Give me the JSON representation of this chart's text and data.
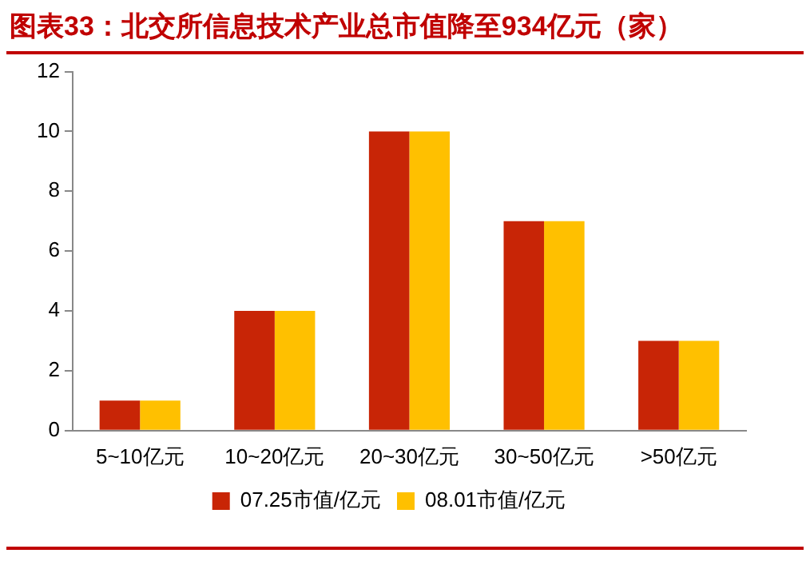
{
  "chart_data": {
    "type": "bar",
    "title": "图表33：北交所信息技术产业总市值降至934亿元（家）",
    "categories": [
      "5~10亿元",
      "10~20亿元",
      "20~30亿元",
      "30~50亿元",
      ">50亿元"
    ],
    "series": [
      {
        "name": "07.25市值/亿元",
        "color": "#c82506",
        "values": [
          1,
          4,
          10,
          7,
          3
        ]
      },
      {
        "name": "08.01市值/亿元",
        "color": "#ffc000",
        "values": [
          1,
          4,
          10,
          7,
          3
        ]
      }
    ],
    "ylim": [
      0,
      12
    ],
    "yticks": [
      0,
      2,
      4,
      6,
      8,
      10,
      12
    ],
    "grid": false,
    "legend": "bottom"
  }
}
